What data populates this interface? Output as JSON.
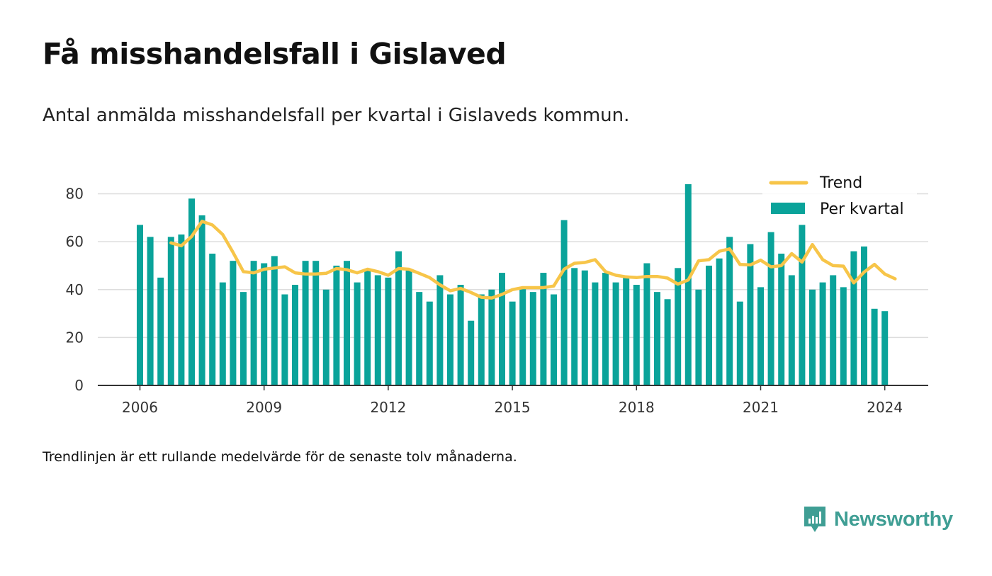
{
  "title": "Få misshandelsfall i Gislaved",
  "subtitle": "Antal anmälda misshandelsfall per kvartal i Gislaveds kommun.",
  "footnote": "Trendlinjen är ett rullande medelvärde för de senaste tolv månaderna.",
  "brand": {
    "name": "Newsworthy",
    "icon": "newsworthy-logo-icon"
  },
  "colors": {
    "bars": "#0aa39a",
    "trend": "#f7c549",
    "grid": "#dddddd",
    "axis": "#333333",
    "brand": "#3f9e94"
  },
  "chart_data": {
    "type": "bar",
    "x_axis": {
      "ticks": [
        "2006",
        "2009",
        "2012",
        "2015",
        "2018",
        "2021",
        "2024"
      ],
      "range": [
        "2005 Q2",
        "2025 Q1"
      ]
    },
    "y_axis": {
      "ticks": [
        0,
        20,
        40,
        60,
        80
      ],
      "range": [
        0,
        88
      ]
    },
    "grid": true,
    "legend_position": "top-right",
    "series": [
      {
        "name": "Per kvartal",
        "kind": "bar",
        "start": "2006 Q1",
        "frequency": "quarterly",
        "values": [
          67,
          62,
          45,
          62,
          63,
          78,
          71,
          55,
          43,
          52,
          39,
          52,
          51,
          54,
          38,
          42,
          52,
          52,
          40,
          50,
          52,
          43,
          48,
          46,
          45,
          56,
          48,
          39,
          35,
          46,
          38,
          42,
          27,
          38,
          40,
          47,
          35,
          41,
          39,
          47,
          38,
          69,
          49,
          48,
          43,
          47,
          43,
          45,
          42,
          51,
          39,
          36,
          49,
          84,
          40,
          50,
          53,
          62,
          35,
          59,
          41,
          64,
          55,
          46,
          67,
          40,
          43,
          46,
          41,
          56,
          58,
          32,
          31
        ]
      },
      {
        "name": "Trend",
        "kind": "line",
        "start": "2006 Q4",
        "frequency": "quarterly",
        "values": [
          59.5,
          58.3,
          62.2,
          68.5,
          67,
          63,
          55.5,
          47.5,
          47,
          48.5,
          49,
          49.5,
          47,
          46.5,
          46.5,
          46.8,
          48.8,
          48.3,
          47,
          48.5,
          47.5,
          46,
          48.8,
          48.5,
          46.8,
          45,
          42,
          39.5,
          40.5,
          38.8,
          36.8,
          36.5,
          38,
          40,
          40.8,
          40.8,
          40.8,
          41.5,
          48.5,
          51,
          51.3,
          52.5,
          47.5,
          46,
          45.3,
          45,
          45.5,
          45.5,
          44.8,
          42.3,
          44,
          52,
          52.5,
          56,
          57,
          50.5,
          50.3,
          52.3,
          49.5,
          50,
          55,
          51.5,
          58.8,
          52.5,
          50,
          49.8,
          42.8,
          47.3,
          50.5,
          46.5,
          44.5
        ]
      }
    ]
  }
}
